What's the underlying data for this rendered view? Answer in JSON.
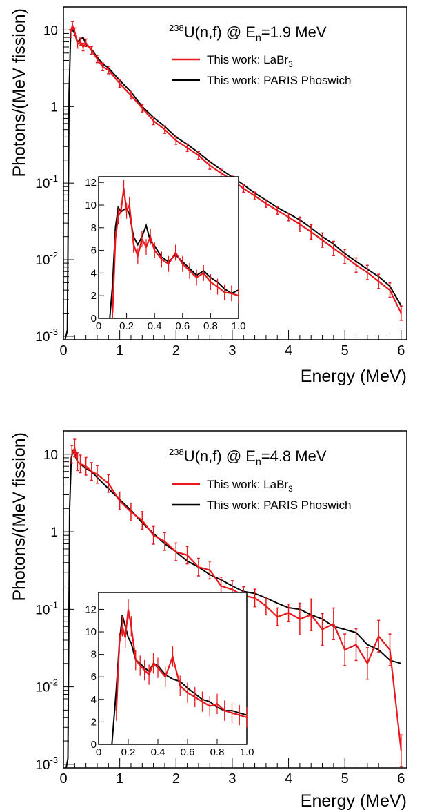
{
  "chart_data": [
    {
      "type": "line",
      "title_main": "U(n,f) @ E",
      "title_iso": "238",
      "title_sub": "n",
      "title_value": "=1.9 MeV",
      "xlabel": "Energy (MeV)",
      "ylabel": "Photons/(MeV fission)",
      "xlim": [
        0,
        6.1
      ],
      "ylim": [
        0.0009,
        20
      ],
      "yscale": "log",
      "xticks": [
        "0",
        "1",
        "2",
        "3",
        "4",
        "5",
        "6"
      ],
      "yticks": [
        {
          "v": 10,
          "base": "10",
          "exp": ""
        },
        {
          "v": 1,
          "base": "1",
          "exp": ""
        },
        {
          "v": 0.1,
          "base": "10",
          "exp": "-1"
        },
        {
          "v": 0.01,
          "base": "10",
          "exp": "-2"
        },
        {
          "v": 0.001,
          "base": "10",
          "exp": "-3"
        }
      ],
      "legend": [
        {
          "name": "This work: LaBr",
          "sub": "3",
          "color": "#e8181d"
        },
        {
          "name": "This work: PARIS Phoswich",
          "sub": "",
          "color": "#000000"
        }
      ],
      "series": [
        {
          "name": "This work: PARIS Phoswich",
          "color": "#000000",
          "x": [
            0.03,
            0.07,
            0.1,
            0.13,
            0.16,
            0.2,
            0.25,
            0.3,
            0.35,
            0.4,
            0.5,
            0.6,
            0.7,
            0.8,
            1.0,
            1.2,
            1.4,
            1.6,
            1.8,
            2.0,
            2.2,
            2.4,
            2.6,
            2.8,
            3.0,
            3.2,
            3.4,
            3.6,
            3.8,
            4.0,
            4.2,
            4.4,
            4.6,
            4.8,
            5.0,
            5.2,
            5.4,
            5.6,
            5.8,
            6.0
          ],
          "y": [
            0.0009,
            0.0012,
            1.5,
            10,
            10,
            9,
            7,
            7.5,
            8,
            6.5,
            5.6,
            4.4,
            3.6,
            3.2,
            2.2,
            1.55,
            1.0,
            0.72,
            0.55,
            0.4,
            0.32,
            0.25,
            0.19,
            0.15,
            0.12,
            0.095,
            0.074,
            0.06,
            0.048,
            0.04,
            0.033,
            0.026,
            0.02,
            0.016,
            0.012,
            0.0095,
            0.0075,
            0.006,
            0.0045,
            0.0025
          ]
        },
        {
          "name": "This work: LaBr3",
          "color": "#e8181d",
          "x": [
            0.12,
            0.16,
            0.2,
            0.25,
            0.3,
            0.35,
            0.4,
            0.5,
            0.6,
            0.7,
            0.8,
            1.0,
            1.2,
            1.4,
            1.6,
            1.8,
            2.0,
            2.2,
            2.4,
            2.6,
            2.8,
            3.0,
            3.2,
            3.4,
            3.6,
            3.8,
            4.0,
            4.2,
            4.4,
            4.6,
            4.8,
            5.0,
            5.2,
            5.4,
            5.6,
            5.8,
            6.0
          ],
          "y": [
            9,
            11.5,
            9.5,
            6.5,
            7,
            6,
            6.8,
            5.4,
            4.2,
            3.3,
            3,
            2.0,
            1.4,
            0.95,
            0.65,
            0.5,
            0.36,
            0.29,
            0.23,
            0.17,
            0.135,
            0.11,
            0.085,
            0.068,
            0.054,
            0.044,
            0.036,
            0.029,
            0.023,
            0.018,
            0.014,
            0.011,
            0.0085,
            0.0068,
            0.0052,
            0.004,
            0.002
          ],
          "err": 0.12
        }
      ],
      "inset": {
        "xlim": [
          0,
          1.0
        ],
        "ylim": [
          0,
          12.5
        ],
        "xticks": [
          "0",
          "0.2",
          "0.4",
          "0.6",
          "0.8",
          "1.0"
        ],
        "yticks": [
          "0",
          "2",
          "4",
          "6",
          "8",
          "10",
          "12"
        ],
        "black": {
          "x": [
            0.08,
            0.1,
            0.12,
            0.14,
            0.16,
            0.18,
            0.2,
            0.22,
            0.25,
            0.28,
            0.31,
            0.34,
            0.37,
            0.4,
            0.45,
            0.5,
            0.55,
            0.6,
            0.65,
            0.7,
            0.75,
            0.8,
            0.85,
            0.9,
            0.95,
            1.0
          ],
          "y": [
            0,
            3,
            8,
            9.8,
            9.4,
            9.6,
            9.7,
            9.2,
            7.2,
            6.5,
            7.2,
            8.2,
            6.8,
            6.4,
            5.4,
            5.0,
            5.6,
            5.0,
            4.4,
            3.8,
            4.2,
            3.6,
            3.2,
            2.6,
            2.2,
            2.5
          ]
        },
        "red": {
          "x": [
            0.1,
            0.12,
            0.14,
            0.16,
            0.18,
            0.2,
            0.22,
            0.25,
            0.28,
            0.31,
            0.34,
            0.37,
            0.4,
            0.45,
            0.5,
            0.55,
            0.6,
            0.65,
            0.7,
            0.75,
            0.8,
            0.85,
            0.9,
            0.95,
            1.0
          ],
          "y": [
            0.5,
            7,
            9,
            9.5,
            11.5,
            9.5,
            10,
            6.5,
            5.5,
            7,
            6.3,
            7.2,
            6.0,
            5.2,
            4.8,
            5.8,
            4.8,
            4.2,
            3.6,
            4.0,
            3.2,
            2.8,
            2.3,
            2.2,
            2.0
          ],
          "err": 0.7
        }
      }
    },
    {
      "type": "line",
      "title_main": "U(n,f) @ E",
      "title_iso": "238",
      "title_sub": "n",
      "title_value": "=4.8 MeV",
      "xlabel": "Energy (MeV)",
      "ylabel": "Photons/(MeV fission)",
      "xlim": [
        0,
        6.1
      ],
      "ylim": [
        0.0009,
        20
      ],
      "yscale": "log",
      "xticks": [
        "0",
        "1",
        "2",
        "3",
        "4",
        "5",
        "6"
      ],
      "yticks": [
        {
          "v": 10,
          "base": "10",
          "exp": ""
        },
        {
          "v": 1,
          "base": "1",
          "exp": ""
        },
        {
          "v": 0.1,
          "base": "10",
          "exp": "-1"
        },
        {
          "v": 0.01,
          "base": "10",
          "exp": "-2"
        },
        {
          "v": 0.001,
          "base": "10",
          "exp": "-3"
        }
      ],
      "legend": [
        {
          "name": "This work: LaBr",
          "sub": "3",
          "color": "#e8181d"
        },
        {
          "name": "This work: PARIS Phoswich",
          "sub": "",
          "color": "#000000"
        }
      ],
      "series": [
        {
          "name": "This work: PARIS Phoswich",
          "color": "#000000",
          "x": [
            0.05,
            0.08,
            0.11,
            0.14,
            0.17,
            0.2,
            0.25,
            0.3,
            0.4,
            0.5,
            0.6,
            0.8,
            1.0,
            1.2,
            1.4,
            1.6,
            1.8,
            2.0,
            2.2,
            2.4,
            2.6,
            2.8,
            3.0,
            3.2,
            3.4,
            3.6,
            3.8,
            4.0,
            4.2,
            4.4,
            4.6,
            4.8,
            5.0,
            5.2,
            5.4,
            5.6,
            5.8,
            6.0
          ],
          "y": [
            0.0009,
            0.0012,
            2,
            9,
            11,
            10,
            8,
            7.5,
            6.5,
            6,
            5,
            3.6,
            2.6,
            1.9,
            1.3,
            0.95,
            0.7,
            0.55,
            0.42,
            0.35,
            0.28,
            0.24,
            0.2,
            0.17,
            0.16,
            0.14,
            0.12,
            0.105,
            0.1,
            0.085,
            0.075,
            0.06,
            0.055,
            0.05,
            0.035,
            0.03,
            0.022,
            0.02
          ]
        },
        {
          "name": "This work: LaBr3",
          "color": "#e8181d",
          "x": [
            0.15,
            0.2,
            0.25,
            0.3,
            0.4,
            0.5,
            0.6,
            0.8,
            1.0,
            1.2,
            1.4,
            1.6,
            1.8,
            2.0,
            2.2,
            2.4,
            2.6,
            2.8,
            3.0,
            3.2,
            3.4,
            3.6,
            3.8,
            4.0,
            4.2,
            4.4,
            4.6,
            4.8,
            5.0,
            5.2,
            5.4,
            5.6,
            5.8,
            6.0
          ],
          "y": [
            10,
            12,
            8,
            7.5,
            7,
            6,
            5.5,
            4.2,
            2.5,
            1.8,
            1.4,
            0.9,
            0.75,
            0.55,
            0.5,
            0.35,
            0.32,
            0.2,
            0.18,
            0.15,
            0.14,
            0.11,
            0.08,
            0.09,
            0.075,
            0.085,
            0.055,
            0.065,
            0.03,
            0.035,
            0.02,
            0.045,
            0.03,
            0.0015
          ],
          "err": 0.3
        }
      ],
      "inset": {
        "xlim": [
          0,
          1.0
        ],
        "ylim": [
          0,
          13.5
        ],
        "xticks": [
          "0",
          "0.2",
          "0.4",
          "0.6",
          "0.8",
          "1.0"
        ],
        "yticks": [
          "0",
          "2",
          "4",
          "6",
          "8",
          "10",
          "12"
        ],
        "black": {
          "x": [
            0.09,
            0.12,
            0.14,
            0.16,
            0.18,
            0.2,
            0.22,
            0.25,
            0.28,
            0.31,
            0.34,
            0.37,
            0.4,
            0.45,
            0.5,
            0.55,
            0.6,
            0.65,
            0.7,
            0.75,
            0.8,
            0.85,
            0.9,
            0.95,
            1.0
          ],
          "y": [
            0,
            5,
            9,
            11.5,
            10.5,
            9.5,
            9,
            7.5,
            7.2,
            6.8,
            6.5,
            7.2,
            7.0,
            6.2,
            5.8,
            5.6,
            5.0,
            4.5,
            4.0,
            3.8,
            3.3,
            3.0,
            3.0,
            2.8,
            2.6
          ]
        },
        "red": {
          "x": [
            0.12,
            0.14,
            0.16,
            0.18,
            0.2,
            0.22,
            0.25,
            0.28,
            0.31,
            0.34,
            0.37,
            0.4,
            0.45,
            0.5,
            0.55,
            0.6,
            0.65,
            0.7,
            0.75,
            0.8,
            0.85,
            0.9,
            0.95,
            1.0
          ],
          "y": [
            3,
            9,
            10.5,
            9.5,
            12,
            10.5,
            7.5,
            7.0,
            6.6,
            6.2,
            7.2,
            6.8,
            6.0,
            7.8,
            5.2,
            4.6,
            4.2,
            3.8,
            3.4,
            3.6,
            3.0,
            2.8,
            2.6,
            2.4
          ],
          "err": 0.9
        }
      }
    }
  ]
}
